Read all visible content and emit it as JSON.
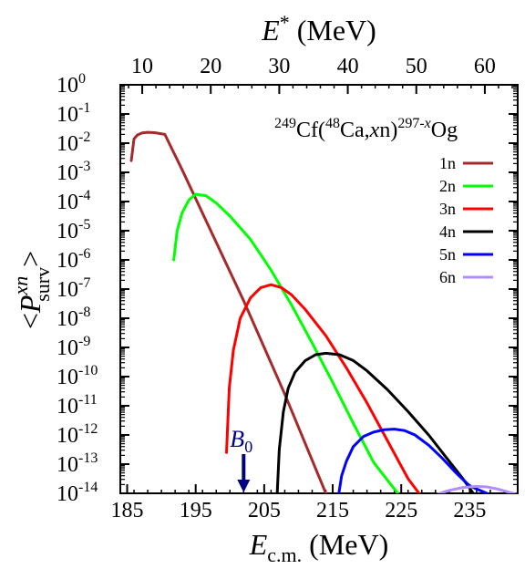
{
  "chart_data": {
    "type": "line",
    "title": "",
    "annotation_reaction": {
      "pre1": "249",
      "t1": "Cf(",
      "pre2": "48",
      "t2": "Ca,",
      "t3": "x",
      "t4": "n)",
      "pre3": "297-",
      "pre3b": "x",
      "t5": "Og"
    },
    "xlabel": {
      "main": "E",
      "sub": "c.m.",
      "unit": "(MeV)"
    },
    "x2label": {
      "main": "E",
      "sup": "*",
      "unit": "(MeV)"
    },
    "ylabel": {
      "open": "<",
      "main": "P",
      "sup": "xn",
      "sub": "surv",
      "close": ">"
    },
    "xlim": [
      184,
      242
    ],
    "x_ticks": [
      185,
      195,
      205,
      215,
      225,
      235
    ],
    "x2_offset": 177.2,
    "x2_ticks": [
      10,
      20,
      30,
      40,
      50,
      60
    ],
    "ylim_exp": [
      -14,
      0
    ],
    "y_scale": "log",
    "y_tick_exponents": [
      0,
      -1,
      -2,
      -3,
      -4,
      -5,
      -6,
      -7,
      -8,
      -9,
      -10,
      -11,
      -12,
      -13,
      -14
    ],
    "y_tick_base": "10",
    "b0_marker": {
      "label": "B",
      "sub": "0",
      "x": 202,
      "color": "#000080"
    },
    "legend_position": "top-right",
    "series": [
      {
        "name": "1n",
        "color": "#a52a2a",
        "x": [
          185.6,
          186.0,
          186.5,
          187.2,
          188.0,
          189.0,
          190.5,
          193,
          196,
          199,
          202,
          205,
          208,
          211,
          214
        ],
        "log10_y": [
          -2.6,
          -1.85,
          -1.72,
          -1.65,
          -1.63,
          -1.64,
          -1.7,
          -2.9,
          -4.4,
          -5.9,
          -7.4,
          -9.0,
          -10.6,
          -12.3,
          -14.0
        ]
      },
      {
        "name": "2n",
        "color": "#00ff00",
        "x": [
          191.8,
          192.3,
          193.0,
          194.0,
          195.0,
          196.5,
          198,
          200,
          203,
          206,
          209,
          212,
          215,
          218,
          221,
          224.5
        ],
        "log10_y": [
          -6.0,
          -5.0,
          -4.4,
          -3.95,
          -3.75,
          -3.8,
          -4.05,
          -4.5,
          -5.3,
          -6.35,
          -7.55,
          -8.85,
          -10.2,
          -11.6,
          -12.95,
          -14.0
        ]
      },
      {
        "name": "3n",
        "color": "#ff0000",
        "x": [
          199.5,
          199.9,
          200.5,
          201.5,
          203,
          204.5,
          206,
          207.5,
          209,
          211,
          214,
          217,
          220,
          223,
          226,
          227.6
        ],
        "log10_y": [
          -12.6,
          -10.4,
          -9.1,
          -8.0,
          -7.3,
          -6.95,
          -6.85,
          -6.95,
          -7.2,
          -7.7,
          -8.6,
          -9.7,
          -10.9,
          -12.2,
          -13.5,
          -14.0
        ]
      },
      {
        "name": "4n",
        "color": "#000000",
        "x": [
          206.9,
          207.2,
          207.8,
          208.5,
          209.5,
          211,
          212.5,
          214,
          216,
          218,
          220,
          223,
          226,
          229,
          232,
          234,
          235.5
        ],
        "log10_y": [
          -14.0,
          -12.5,
          -11.2,
          -10.4,
          -9.85,
          -9.45,
          -9.25,
          -9.2,
          -9.25,
          -9.45,
          -9.8,
          -10.45,
          -11.2,
          -12.0,
          -12.9,
          -13.5,
          -14.0
        ]
      },
      {
        "name": "5n",
        "color": "#0000ff",
        "x": [
          215.9,
          216.3,
          217,
          218,
          219.5,
          221,
          222.5,
          224,
          225.5,
          227,
          229,
          231,
          233,
          235,
          237.5
        ],
        "log10_y": [
          -14.0,
          -13.4,
          -12.9,
          -12.4,
          -12.05,
          -11.9,
          -11.82,
          -11.8,
          -11.85,
          -12.0,
          -12.35,
          -12.8,
          -13.3,
          -13.75,
          -14.0
        ]
      },
      {
        "name": "6n",
        "color": "#b28dff",
        "x": [
          230,
          232,
          234,
          236,
          237.5,
          239,
          241,
          242
        ],
        "log10_y": [
          -14.05,
          -13.9,
          -13.8,
          -13.76,
          -13.78,
          -13.85,
          -13.98,
          -14.05
        ]
      }
    ]
  }
}
